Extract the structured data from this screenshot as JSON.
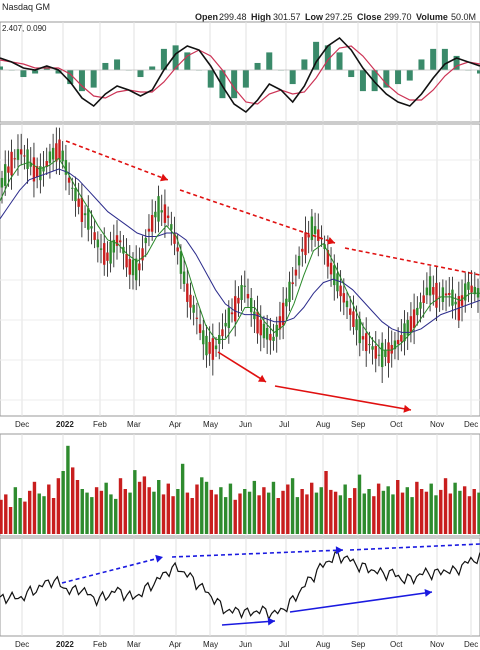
{
  "header": {
    "exchange": "Nasdaq GM",
    "open_label": "Open",
    "open": "299.48",
    "high_label": "High",
    "high": "301.57",
    "low_label": "Low",
    "low": "297.25",
    "close_label": "Close",
    "close": "299.70",
    "volume_label": "Volume",
    "volume": "50.0M"
  },
  "macd_panel": {
    "values": "2.407, 0.090"
  },
  "x_axis": {
    "ticks": [
      "Dec",
      "2022",
      "Feb",
      "Mar",
      "Apr",
      "May",
      "Jun",
      "Jul",
      "Aug",
      "Sep",
      "Oct",
      "Nov",
      "Dec"
    ]
  },
  "colors": {
    "up": "#2e8b2e",
    "down": "#c81e1e",
    "ma_fast": "#2a8a2a",
    "ma_slow": "#2c2c8c",
    "trend_red": "#e01010",
    "trend_blue": "#1a1ae0",
    "macd": "#111111",
    "signal": "#cc3355",
    "hist": "#3a8a6a"
  },
  "chart_data": [
    {
      "type": "line",
      "panel": "MACD",
      "title": "",
      "series": [
        {
          "values": [
            0.8,
            0.6,
            0.3,
            0.2,
            0.4,
            0.2,
            -0.4,
            -1.2,
            -1.6,
            -1.0,
            -0.6,
            -0.8,
            -1.1,
            -0.8,
            0.2,
            1.0,
            1.4,
            1.2,
            0.4,
            -0.6,
            -1.5,
            -1.9,
            -1.3,
            -0.5,
            -0.8,
            -1.4,
            -0.6,
            0.6,
            1.4,
            1.8,
            1.2,
            0.3,
            -0.4,
            -1.0,
            -1.4,
            -1.6,
            -1.0,
            -0.2,
            0.5,
            0.8,
            0.6,
            0.4
          ]
        },
        {
          "values": [
            0.7,
            0.6,
            0.5,
            0.3,
            0.3,
            0.3,
            0.0,
            -0.6,
            -1.1,
            -1.2,
            -0.9,
            -0.8,
            -0.9,
            -0.9,
            -0.4,
            0.3,
            0.9,
            1.2,
            0.9,
            0.2,
            -0.7,
            -1.4,
            -1.5,
            -1.0,
            -0.8,
            -1.0,
            -0.9,
            -0.2,
            0.7,
            1.3,
            1.4,
            0.9,
            0.2,
            -0.5,
            -1.0,
            -1.3,
            -1.3,
            -0.8,
            -0.1,
            0.4,
            0.6,
            0.5
          ]
        }
      ]
    },
    {
      "type": "line",
      "panel": "price",
      "title": "",
      "x_start": "Nov 2021",
      "x_end": "Dec 2022",
      "series": [
        {
          "values": [
            380,
            392,
            398,
            390,
            385,
            395,
            400,
            380,
            368,
            358,
            344,
            338,
            350,
            334,
            330,
            352,
            365,
            363,
            345,
            320,
            305,
            288,
            287,
            300,
            310,
            322,
            305,
            296,
            292,
            308,
            325,
            344,
            355,
            348,
            330,
            318,
            306,
            294,
            288,
            282,
            286,
            292,
            300,
            310,
            322,
            316,
            318,
            310,
            322,
            318
          ]
        },
        {
          "values": [
            370,
            382,
            390,
            392,
            388,
            390,
            394,
            385,
            375,
            366,
            356,
            348,
            346,
            340,
            336,
            340,
            350,
            356,
            350,
            334,
            316,
            300,
            292,
            292,
            300,
            310,
            310,
            302,
            296,
            300,
            312,
            328,
            342,
            346,
            336,
            324,
            312,
            300,
            292,
            286,
            286,
            290,
            296,
            304,
            312,
            316,
            316,
            314,
            318,
            318
          ]
        },
        {
          "values": [
            360,
            368,
            376,
            382,
            384,
            386,
            388,
            386,
            382,
            376,
            370,
            364,
            360,
            356,
            352,
            350,
            350,
            352,
            352,
            348,
            340,
            330,
            320,
            312,
            308,
            306,
            306,
            304,
            302,
            302,
            304,
            310,
            318,
            324,
            326,
            324,
            320,
            314,
            308,
            302,
            298,
            296,
            296,
            298,
            302,
            306,
            308,
            310,
            312,
            314
          ]
        }
      ]
    },
    {
      "type": "bar",
      "panel": "volume",
      "title": "",
      "values": [
        38,
        44,
        30,
        52,
        40,
        36,
        48,
        58,
        45,
        42,
        55,
        40,
        62,
        70,
        98,
        74,
        60,
        50,
        46,
        41,
        52,
        48,
        57,
        44,
        39,
        62,
        50,
        46,
        71,
        58,
        64,
        52,
        47,
        60,
        44,
        56,
        42,
        50,
        78,
        46,
        40,
        55,
        63,
        58,
        49,
        44,
        52,
        41,
        56,
        38,
        45,
        50,
        47,
        59,
        43,
        52,
        46,
        58,
        40,
        48,
        55,
        62,
        41,
        50,
        44,
        57,
        46,
        52,
        70,
        49,
        47,
        43,
        55,
        40,
        51,
        66,
        45,
        50,
        42,
        56,
        48,
        53,
        44,
        60,
        46,
        52,
        41,
        58,
        50,
        47,
        56,
        43,
        49,
        62,
        45,
        57,
        48,
        53,
        42,
        50,
        46
      ]
    },
    {
      "type": "line",
      "panel": "relative strength",
      "title": "",
      "series": [
        {
          "values": [
            0.3,
            0.34,
            0.31,
            0.36,
            0.4,
            0.46,
            0.5,
            0.44,
            0.38,
            0.42,
            0.35,
            0.3,
            0.34,
            0.4,
            0.36,
            0.32,
            0.38,
            0.45,
            0.52,
            0.6,
            0.62,
            0.56,
            0.48,
            0.4,
            0.32,
            0.22,
            0.18,
            0.2,
            0.16,
            0.2,
            0.18,
            0.16,
            0.22,
            0.3,
            0.42,
            0.52,
            0.62,
            0.7,
            0.74,
            0.72,
            0.66,
            0.62,
            0.6,
            0.56,
            0.58,
            0.52,
            0.5,
            0.54,
            0.58,
            0.56,
            0.6,
            0.58,
            0.64,
            0.7,
            0.72
          ]
        }
      ]
    }
  ]
}
